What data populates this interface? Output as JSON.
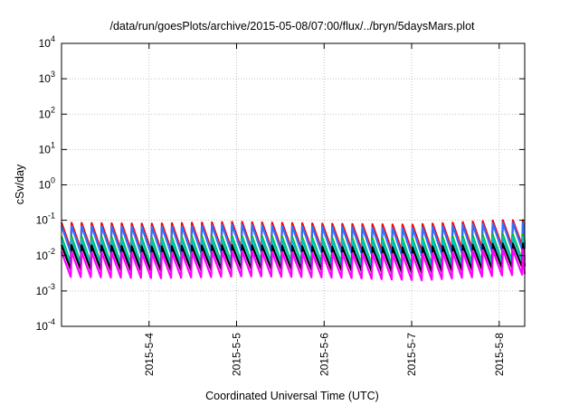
{
  "chart_data": {
    "type": "line",
    "title": "/data/run/goesPlots/archive/2015-05-08/07:00/flux/../bryn/5daysMars.plot",
    "xlabel": "Coordinated Universal Time (UTC)",
    "ylabel": "cSv/day",
    "y_scale": "log",
    "ylim": [
      0.0001,
      10000
    ],
    "y_ticks": [
      {
        "exp": "-4",
        "value": 0.0001
      },
      {
        "exp": "-3",
        "value": 0.001
      },
      {
        "exp": "-2",
        "value": 0.01
      },
      {
        "exp": "-1",
        "value": 0.1
      },
      {
        "exp": "0",
        "value": 1
      },
      {
        "exp": "1",
        "value": 10
      },
      {
        "exp": "2",
        "value": 100
      },
      {
        "exp": "3",
        "value": 1000
      },
      {
        "exp": "4",
        "value": 10000
      }
    ],
    "x_range": [
      "2015-05-03 00:00",
      "2015-05-08 07:00"
    ],
    "x_ticks": [
      "2015-5-4",
      "2015-5-5",
      "2015-5-6",
      "2015-5-7",
      "2015-5-8"
    ],
    "grid": true,
    "series_colors": [
      "#ff0000",
      "#00c000",
      "#0000ff",
      "#c0a000",
      "#00c0c0",
      "#000000",
      "#ff00ff",
      "#3070ff"
    ],
    "oscillation_period_hours": 2.75,
    "series": [
      {
        "color": "#ff0000",
        "x": [
          "2015-05-03 00:00",
          "2015-05-04 00:00",
          "2015-05-05 00:00",
          "2015-05-06 00:00",
          "2015-05-07 00:00",
          "2015-05-08 00:00",
          "2015-05-08 07:00"
        ],
        "peak": [
          0.085,
          0.08,
          0.09,
          0.08,
          0.075,
          0.1,
          0.1
        ],
        "trough": [
          0.015,
          0.014,
          0.016,
          0.015,
          0.013,
          0.018,
          0.02
        ]
      },
      {
        "color": "#3070ff",
        "x": [
          "2015-05-03 00:00",
          "2015-05-04 00:00",
          "2015-05-05 00:00",
          "2015-05-06 00:00",
          "2015-05-07 00:00",
          "2015-05-08 00:00",
          "2015-05-08 07:00"
        ],
        "peak": [
          0.07,
          0.065,
          0.075,
          0.065,
          0.06,
          0.085,
          0.085
        ],
        "trough": [
          0.012,
          0.011,
          0.013,
          0.012,
          0.01,
          0.014,
          0.016
        ]
      },
      {
        "color": "#00c000",
        "x": [
          "2015-05-03 00:00",
          "2015-05-04 00:00",
          "2015-05-05 00:00",
          "2015-05-06 00:00",
          "2015-05-07 00:00",
          "2015-05-08 00:00",
          "2015-05-08 07:00"
        ],
        "peak": [
          0.035,
          0.032,
          0.036,
          0.032,
          0.03,
          0.04,
          0.04
        ],
        "trough": [
          0.006,
          0.0055,
          0.0065,
          0.006,
          0.005,
          0.007,
          0.008
        ]
      },
      {
        "color": "#00c0c0",
        "x": [
          "2015-05-03 00:00",
          "2015-05-04 00:00",
          "2015-05-05 00:00",
          "2015-05-06 00:00",
          "2015-05-07 00:00",
          "2015-05-08 00:00",
          "2015-05-08 07:00"
        ],
        "peak": [
          0.03,
          0.028,
          0.031,
          0.028,
          0.026,
          0.034,
          0.034
        ],
        "trough": [
          0.0055,
          0.005,
          0.006,
          0.0055,
          0.0045,
          0.0065,
          0.0075
        ]
      },
      {
        "color": "#000000",
        "x": [
          "2015-05-03 00:00",
          "2015-05-04 00:00",
          "2015-05-05 00:00",
          "2015-05-06 00:00",
          "2015-05-07 00:00",
          "2015-05-08 00:00",
          "2015-05-08 07:00"
        ],
        "peak": [
          0.02,
          0.018,
          0.02,
          0.018,
          0.017,
          0.022,
          0.022
        ],
        "trough": [
          0.004,
          0.0036,
          0.0042,
          0.0038,
          0.0032,
          0.0045,
          0.005
        ]
      },
      {
        "color": "#ff00ff",
        "x": [
          "2015-05-03 00:00",
          "2015-05-04 00:00",
          "2015-05-05 00:00",
          "2015-05-06 00:00",
          "2015-05-07 00:00",
          "2015-05-08 00:00",
          "2015-05-08 07:00"
        ],
        "peak": [
          0.013,
          0.012,
          0.0135,
          0.012,
          0.011,
          0.015,
          0.015
        ],
        "trough": [
          0.0025,
          0.0023,
          0.0026,
          0.0024,
          0.002,
          0.0028,
          0.003
        ]
      }
    ]
  }
}
